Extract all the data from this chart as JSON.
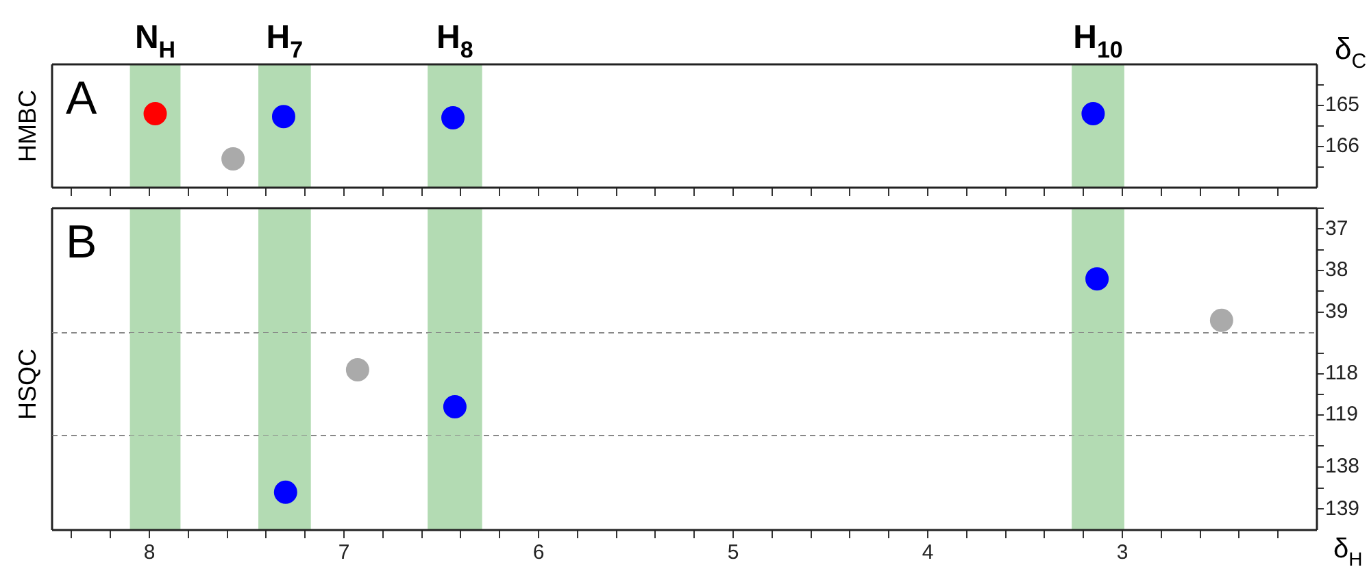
{
  "chart_data": [
    {
      "type": "scatter",
      "ylabel": "δ$_{C}$",
      "annotations": [
        "A",
        "HMBC"
      ],
      "marker": "circle",
      "tick_labels": "y",
      "grid": false,
      "legend": false,
      "xlim": [
        8.5,
        2.0
      ],
      "xticks": [
        {
          "value": 8.4,
          "label": null
        },
        {
          "value": 8.2,
          "label": null
        },
        8,
        {
          "value": 7.8,
          "label": null
        },
        {
          "value": 7.6,
          "label": null
        },
        {
          "value": 7.4,
          "label": null
        },
        {
          "value": 7.2,
          "label": null
        },
        7,
        {
          "value": 6.8,
          "label": null
        },
        {
          "value": 6.6,
          "label": null
        },
        {
          "value": 6.4,
          "label": null
        },
        {
          "value": 6.2,
          "label": null
        },
        6,
        {
          "value": 5.8,
          "label": null
        },
        {
          "value": 5.6,
          "label": null
        },
        {
          "value": 5.4,
          "label": null
        },
        {
          "value": 5.2,
          "label": null
        },
        5,
        {
          "value": 4.8,
          "label": null
        },
        {
          "value": 4.6,
          "label": null
        },
        {
          "value": 4.4,
          "label": null
        },
        {
          "value": 4.2,
          "label": null
        },
        4,
        {
          "value": 3.8,
          "label": null
        },
        {
          "value": 3.6,
          "label": null
        },
        {
          "value": 3.4,
          "label": null
        },
        {
          "value": 3.2,
          "label": null
        },
        3,
        {
          "value": 2.8,
          "label": null
        },
        {
          "value": 2.6,
          "label": null
        },
        {
          "value": 2.4,
          "label": null
        },
        {
          "value": 2.2,
          "label": null
        }
      ],
      "ylim": [
        167,
        164
      ],
      "yticks": [
        {
          "value": 164.5,
          "label": null
        },
        165,
        {
          "value": 165.5,
          "label": null
        },
        166,
        {
          "value": 166.5,
          "label": null
        }
      ],
      "bands": [
        {
          "axis": "x",
          "from": 8.1,
          "to": 7.84,
          "label": "N$_{H}$",
          "color": "#b3dbb3"
        },
        {
          "axis": "x",
          "from": 7.44,
          "to": 7.17,
          "label": "H$_{7}$",
          "color": "#b3dbb3"
        },
        {
          "axis": "x",
          "from": 6.57,
          "to": 6.29,
          "label": "H$_{8}$",
          "color": "#b3dbb3"
        },
        {
          "axis": "x",
          "from": 3.26,
          "to": 2.99,
          "label": "H$_{10}$",
          "color": "#b3dbb3"
        }
      ],
      "series": [
        {
          "color": "#ff0000",
          "x": [
            7.97
          ],
          "values": [
            165.2
          ]
        },
        {
          "color": "#0000ff",
          "x": [
            7.31,
            6.44,
            3.15
          ],
          "values": [
            165.27,
            165.3,
            165.2
          ]
        },
        {
          "color": "#aaaaaa",
          "x": [
            7.57
          ],
          "values": [
            166.3
          ]
        }
      ]
    },
    {
      "type": "scatter",
      "annotations": [
        "B"
      ],
      "marker": "circle",
      "tick_labels": "y",
      "grid": false,
      "legend": false,
      "xlim": [
        8.5,
        2.0
      ],
      "ylim": [
        39.5,
        36.5
      ],
      "yticks": [
        {
          "value": 36.5,
          "label": null
        },
        37,
        {
          "value": 37.5,
          "label": null
        },
        38,
        {
          "value": 38.5,
          "label": null
        },
        39
      ],
      "bands": [
        {
          "axis": "x",
          "from": 8.1,
          "to": 7.84,
          "color": "#b3dbb3"
        },
        {
          "axis": "x",
          "from": 7.44,
          "to": 7.17,
          "color": "#b3dbb3"
        },
        {
          "axis": "x",
          "from": 6.57,
          "to": 6.29,
          "color": "#b3dbb3"
        },
        {
          "axis": "x",
          "from": 3.26,
          "to": 2.99,
          "color": "#b3dbb3"
        }
      ],
      "series": [
        {
          "color": "#0000ff",
          "x": [
            3.13
          ],
          "values": [
            38.2
          ]
        },
        {
          "color": "#aaaaaa",
          "x": [
            2.49
          ],
          "values": [
            39.2
          ]
        }
      ]
    },
    {
      "type": "scatter",
      "ylabel": "HSQC",
      "marker": "circle",
      "tick_labels": "y",
      "grid": false,
      "legend": false,
      "xlim": [
        8.5,
        2.0
      ],
      "ylim": [
        119.5,
        117
      ],
      "yticks": [
        {
          "value": 117.5,
          "label": null
        },
        118,
        {
          "value": 118.5,
          "label": null
        },
        119
      ],
      "bands": [
        {
          "axis": "x",
          "from": 8.1,
          "to": 7.84,
          "color": "#b3dbb3"
        },
        {
          "axis": "x",
          "from": 7.44,
          "to": 7.17,
          "color": "#b3dbb3"
        },
        {
          "axis": "x",
          "from": 6.57,
          "to": 6.29,
          "color": "#b3dbb3"
        },
        {
          "axis": "x",
          "from": 3.26,
          "to": 2.99,
          "color": "#b3dbb3"
        }
      ],
      "series": [
        {
          "color": "#0000ff",
          "x": [
            6.43
          ],
          "values": [
            118.8
          ]
        },
        {
          "color": "#aaaaaa",
          "x": [
            6.93
          ],
          "values": [
            117.9
          ]
        }
      ]
    },
    {
      "type": "scatter",
      "xlabel": "δ$_{H}$",
      "marker": "circle",
      "grid": false,
      "legend": false,
      "xlim": [
        8.5,
        2.0
      ],
      "xticks": [
        {
          "value": 8.4,
          "label": null
        },
        {
          "value": 8.2,
          "label": null
        },
        8,
        {
          "value": 7.8,
          "label": null
        },
        {
          "value": 7.6,
          "label": null
        },
        {
          "value": 7.4,
          "label": null
        },
        {
          "value": 7.2,
          "label": null
        },
        7,
        {
          "value": 6.8,
          "label": null
        },
        {
          "value": 6.6,
          "label": null
        },
        {
          "value": 6.4,
          "label": null
        },
        {
          "value": 6.2,
          "label": null
        },
        6,
        {
          "value": 5.8,
          "label": null
        },
        {
          "value": 5.6,
          "label": null
        },
        {
          "value": 5.4,
          "label": null
        },
        {
          "value": 5.2,
          "label": null
        },
        5,
        {
          "value": 4.8,
          "label": null
        },
        {
          "value": 4.6,
          "label": null
        },
        {
          "value": 4.4,
          "label": null
        },
        {
          "value": 4.2,
          "label": null
        },
        4,
        {
          "value": 3.8,
          "label": null
        },
        {
          "value": 3.6,
          "label": null
        },
        {
          "value": 3.4,
          "label": null
        },
        {
          "value": 3.2,
          "label": null
        },
        3,
        {
          "value": 2.8,
          "label": null
        },
        {
          "value": 2.6,
          "label": null
        },
        {
          "value": 2.4,
          "label": null
        },
        {
          "value": 2.2,
          "label": null
        }
      ],
      "ylim": [
        139.5,
        137.25
      ],
      "yticks": [
        {
          "value": 137.5,
          "label": null
        },
        138,
        {
          "value": 138.5,
          "label": null
        },
        139
      ],
      "bands": [
        {
          "axis": "x",
          "from": 8.1,
          "to": 7.84,
          "color": "#b3dbb3"
        },
        {
          "axis": "x",
          "from": 7.44,
          "to": 7.17,
          "color": "#b3dbb3"
        },
        {
          "axis": "x",
          "from": 6.57,
          "to": 6.29,
          "color": "#b3dbb3"
        },
        {
          "axis": "x",
          "from": 3.26,
          "to": 2.99,
          "color": "#b3dbb3"
        }
      ],
      "series": [
        {
          "color": "#0000ff",
          "x": [
            7.3
          ],
          "values": [
            138.6
          ]
        }
      ]
    }
  ]
}
